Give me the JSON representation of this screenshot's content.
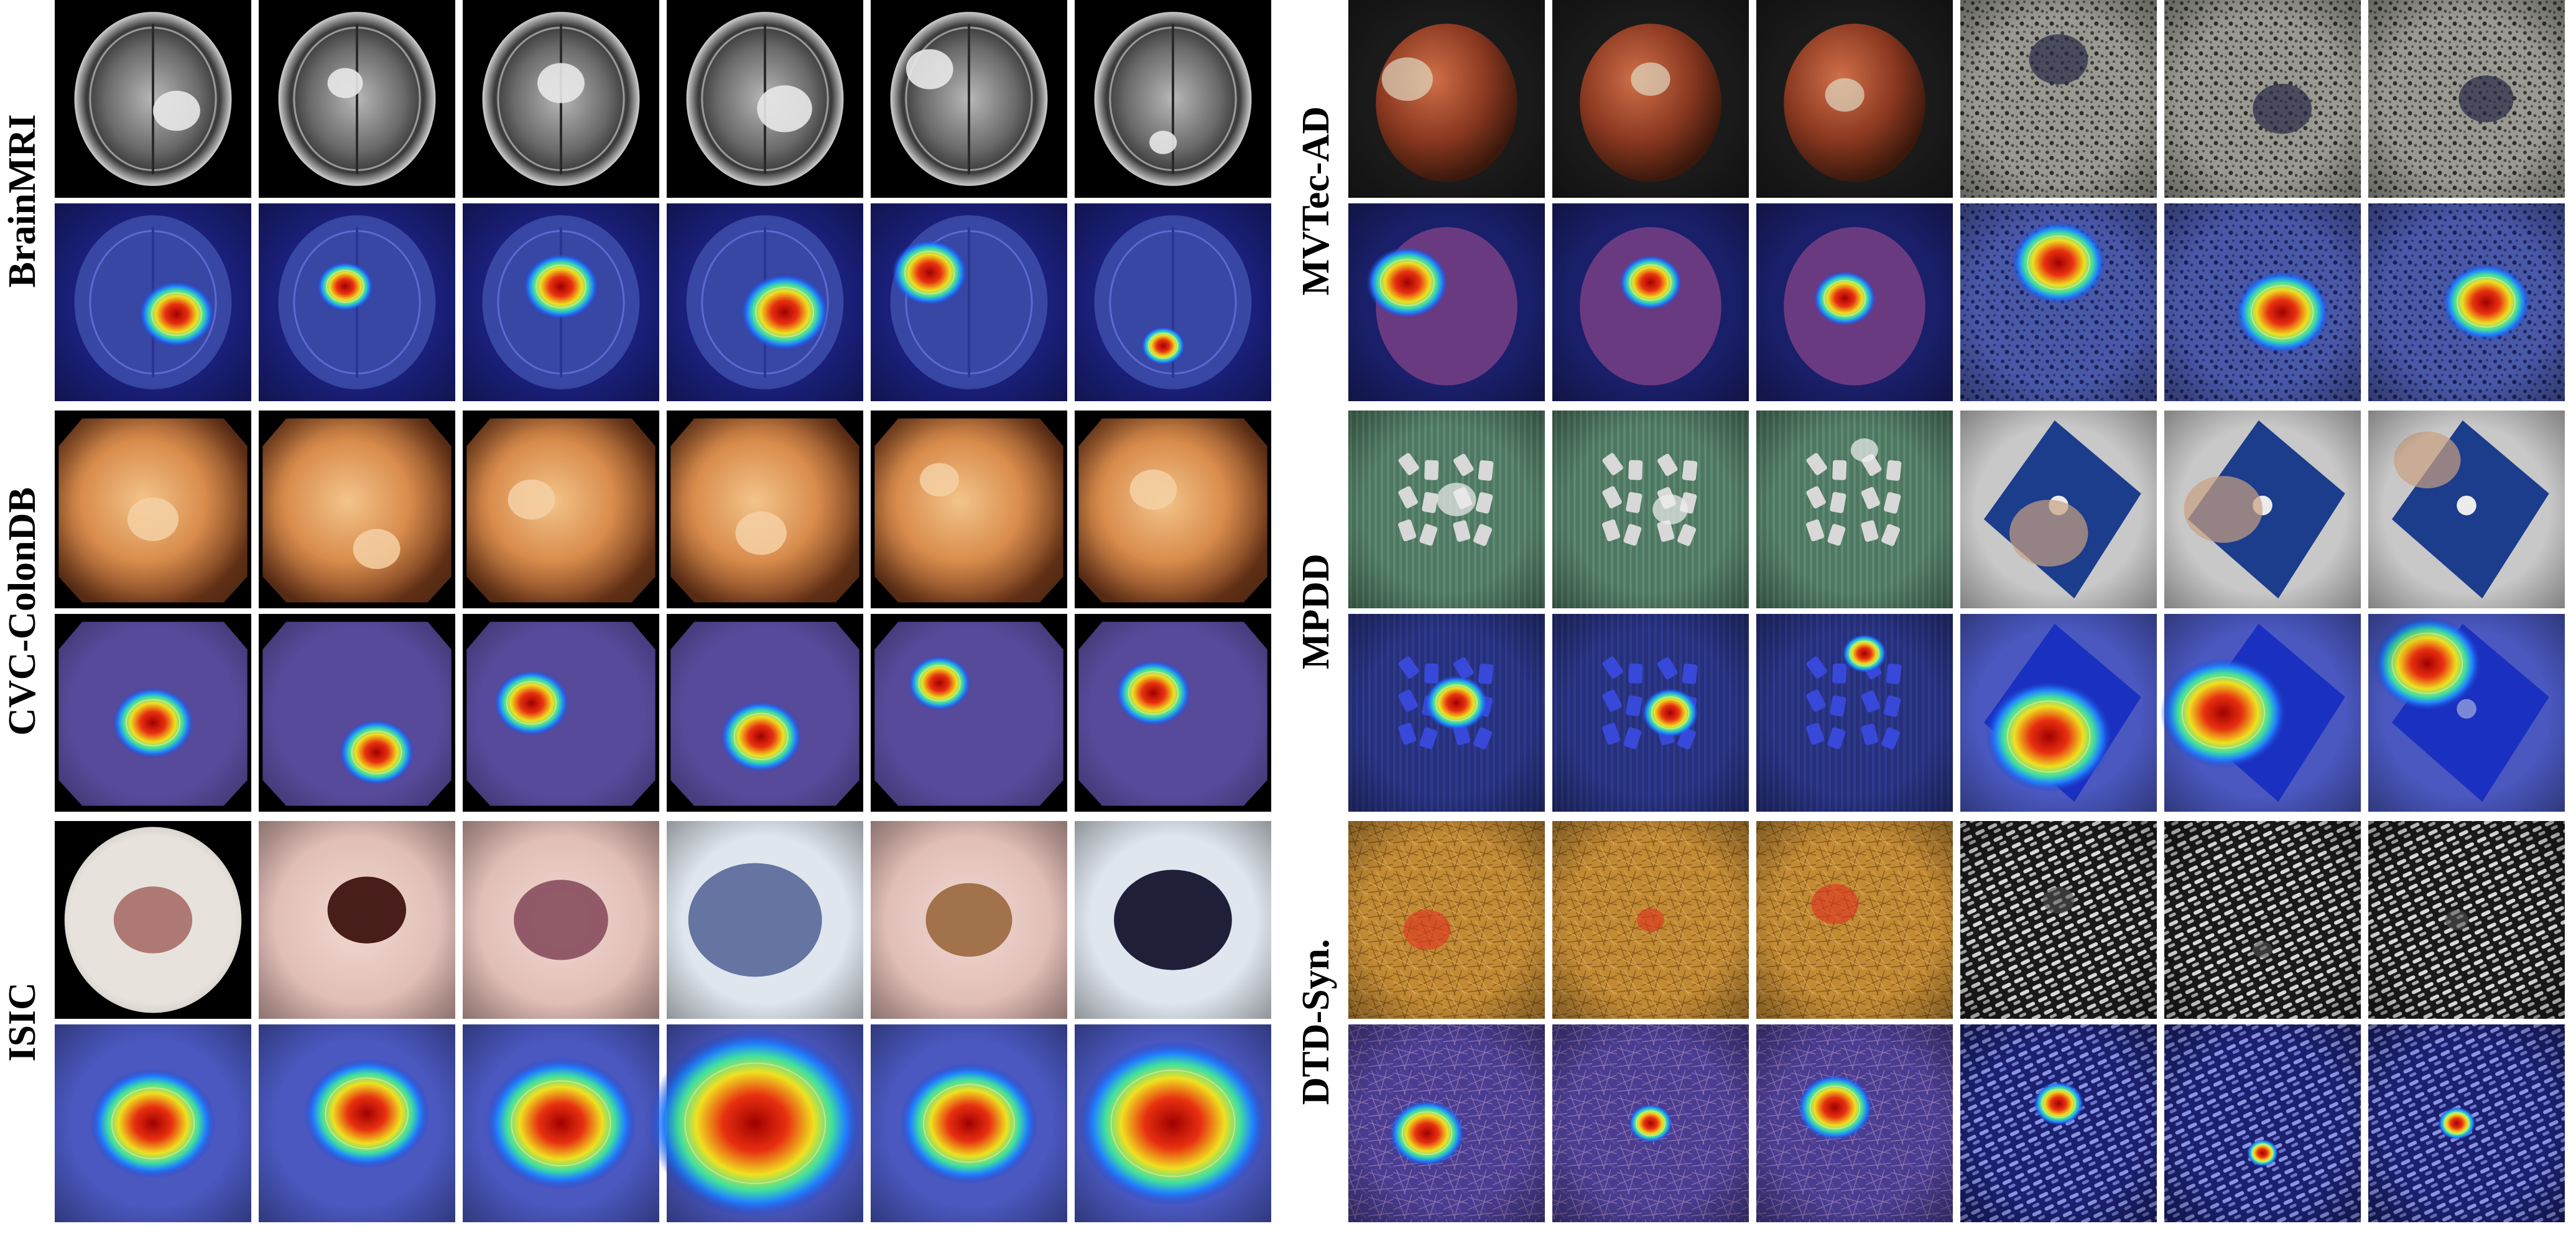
{
  "panels": [
    {
      "id": "left",
      "groups": [
        {
          "label": "BrainMRI",
          "kind": "mri",
          "tiles": [
            {
              "ox": 0.62,
              "oy": 0.56,
              "r": 0.12
            },
            {
              "ox": 0.44,
              "oy": 0.42,
              "r": 0.09
            },
            {
              "ox": 0.5,
              "oy": 0.42,
              "r": 0.12
            },
            {
              "ox": 0.6,
              "oy": 0.55,
              "r": 0.14
            },
            {
              "ox": 0.3,
              "oy": 0.35,
              "r": 0.12
            },
            {
              "ox": 0.45,
              "oy": 0.72,
              "r": 0.07
            }
          ]
        },
        {
          "label": "CVC-ColonDB",
          "kind": "colon",
          "tiles": [
            {
              "ox": 0.5,
              "oy": 0.55,
              "r": 0.13
            },
            {
              "ox": 0.6,
              "oy": 0.7,
              "r": 0.12
            },
            {
              "ox": 0.35,
              "oy": 0.45,
              "r": 0.12
            },
            {
              "ox": 0.48,
              "oy": 0.62,
              "r": 0.13
            },
            {
              "ox": 0.35,
              "oy": 0.35,
              "r": 0.1
            },
            {
              "ox": 0.4,
              "oy": 0.4,
              "r": 0.12
            }
          ]
        },
        {
          "label": "ISIC",
          "kind": "skin",
          "tiles": [
            {
              "ox": 0.5,
              "oy": 0.5,
              "r": 0.2
            },
            {
              "ox": 0.55,
              "oy": 0.45,
              "r": 0.2
            },
            {
              "ox": 0.5,
              "oy": 0.5,
              "r": 0.24
            },
            {
              "ox": 0.45,
              "oy": 0.5,
              "r": 0.34
            },
            {
              "ox": 0.5,
              "oy": 0.5,
              "r": 0.22
            },
            {
              "ox": 0.5,
              "oy": 0.5,
              "r": 0.3
            }
          ]
        }
      ]
    },
    {
      "id": "right",
      "groups": [
        {
          "label": "MVTec-AD",
          "kind": "mvtec",
          "tiles": [
            {
              "ox": 0.3,
              "oy": 0.4,
              "r": 0.13
            },
            {
              "ox": 0.5,
              "oy": 0.4,
              "r": 0.1
            },
            {
              "ox": 0.45,
              "oy": 0.48,
              "r": 0.1
            },
            {
              "ox": 0.5,
              "oy": 0.3,
              "r": 0.15
            },
            {
              "ox": 0.6,
              "oy": 0.55,
              "r": 0.15
            },
            {
              "ox": 0.6,
              "oy": 0.5,
              "r": 0.14
            }
          ]
        },
        {
          "label": "MPDD",
          "kind": "mpdd",
          "tiles": [
            {
              "ox": 0.55,
              "oy": 0.45,
              "r": 0.1
            },
            {
              "ox": 0.6,
              "oy": 0.5,
              "r": 0.09
            },
            {
              "ox": 0.55,
              "oy": 0.2,
              "r": 0.07
            },
            {
              "ox": 0.45,
              "oy": 0.62,
              "r": 0.2
            },
            {
              "ox": 0.3,
              "oy": 0.5,
              "r": 0.2
            },
            {
              "ox": 0.3,
              "oy": 0.25,
              "r": 0.17
            }
          ]
        },
        {
          "label": "DTD-Syn.",
          "kind": "dtd",
          "tiles": [
            {
              "ox": 0.4,
              "oy": 0.55,
              "r": 0.12
            },
            {
              "ox": 0.5,
              "oy": 0.5,
              "r": 0.07
            },
            {
              "ox": 0.4,
              "oy": 0.42,
              "r": 0.12
            },
            {
              "ox": 0.5,
              "oy": 0.4,
              "r": 0.08
            },
            {
              "ox": 0.5,
              "oy": 0.65,
              "r": 0.05
            },
            {
              "ox": 0.45,
              "oy": 0.5,
              "r": 0.06
            }
          ]
        }
      ]
    }
  ]
}
